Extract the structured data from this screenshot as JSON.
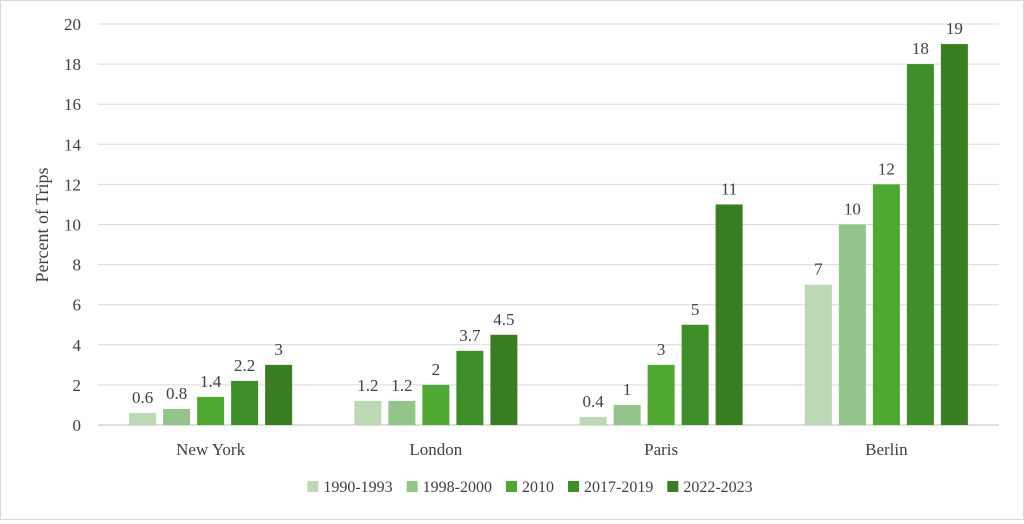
{
  "chart_data": {
    "type": "bar",
    "title": "",
    "xlabel": "",
    "ylabel": "Percent of Trips",
    "ylim": [
      0,
      20
    ],
    "yticks": [
      "0",
      "2",
      "4",
      "6",
      "8",
      "10",
      "12",
      "14",
      "16",
      "18",
      "20"
    ],
    "grid": true,
    "legend_position": "bottom",
    "categories": [
      "New York",
      "London",
      "Paris",
      "Berlin"
    ],
    "series": [
      {
        "name": "1990-1993",
        "color": "#bcd8b4",
        "values": [
          0.6,
          1.2,
          0.4,
          7
        ],
        "labels": [
          "0.6",
          "1.2",
          "0.4",
          "7"
        ]
      },
      {
        "name": "1998-2000",
        "color": "#93c48a",
        "values": [
          0.8,
          1.2,
          1,
          10
        ],
        "labels": [
          "0.8",
          "1.2",
          "1",
          "10"
        ]
      },
      {
        "name": "2010",
        "color": "#4ea831",
        "values": [
          1.4,
          2,
          3,
          12
        ],
        "labels": [
          "1.4",
          "2",
          "3",
          "12"
        ]
      },
      {
        "name": "2017-2019",
        "color": "#3e8e2a",
        "values": [
          2.2,
          3.7,
          5,
          18
        ],
        "labels": [
          "2.2",
          "3.7",
          "5",
          "18"
        ]
      },
      {
        "name": "2022-2023",
        "color": "#3a7d23",
        "values": [
          3,
          4.5,
          11,
          19
        ],
        "labels": [
          "3",
          "4.5",
          "11",
          "19"
        ]
      }
    ]
  }
}
